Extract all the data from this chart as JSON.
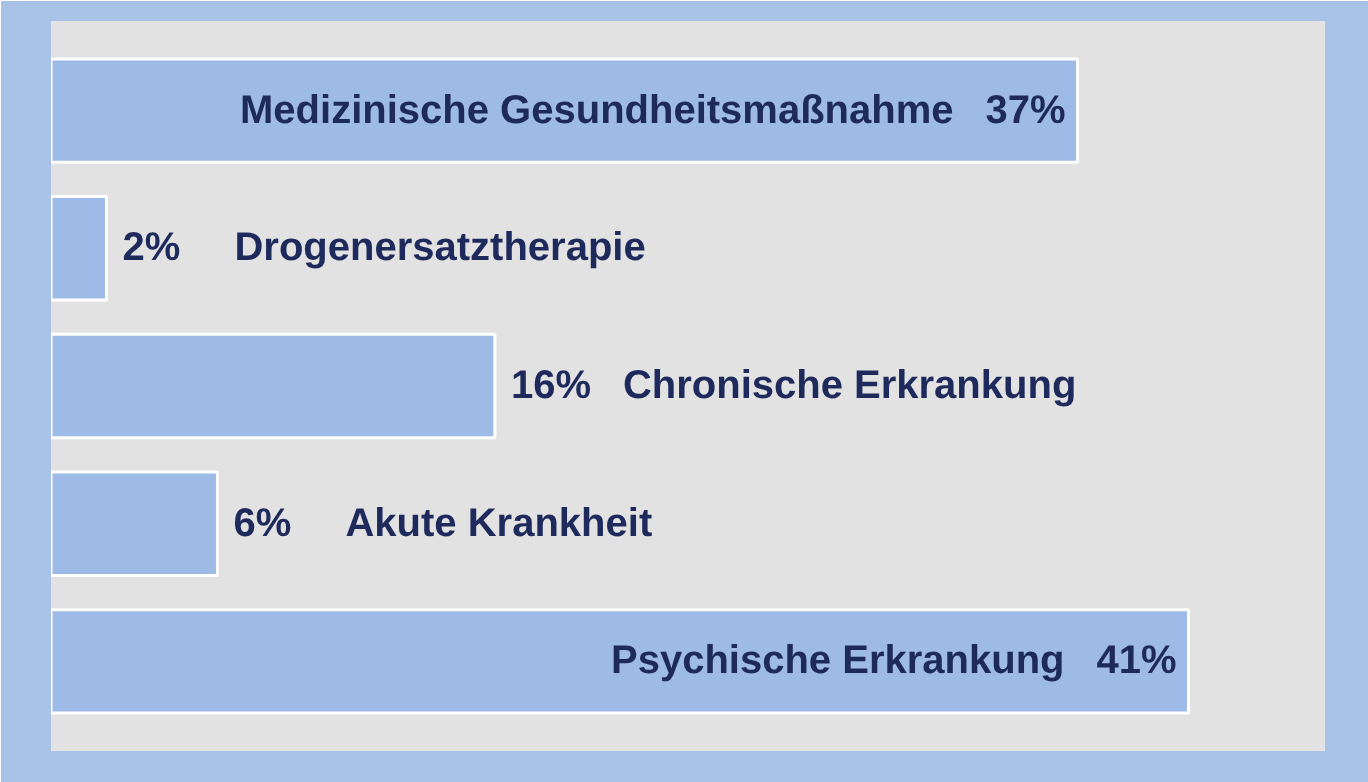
{
  "chart_data": {
    "type": "bar",
    "orientation": "horizontal",
    "categories": [
      "Medizinische Gesundheitsmaßnahme",
      "Drogenersatztherapie",
      "Chronische Erkrankung",
      "Akute Krankheit",
      "Psychische Erkrankung"
    ],
    "values": [
      37,
      2,
      16,
      6,
      41
    ],
    "value_labels": [
      "37%",
      "2%",
      "16%",
      "6%",
      "41%"
    ],
    "color": "#9dbbe6"
  }
}
